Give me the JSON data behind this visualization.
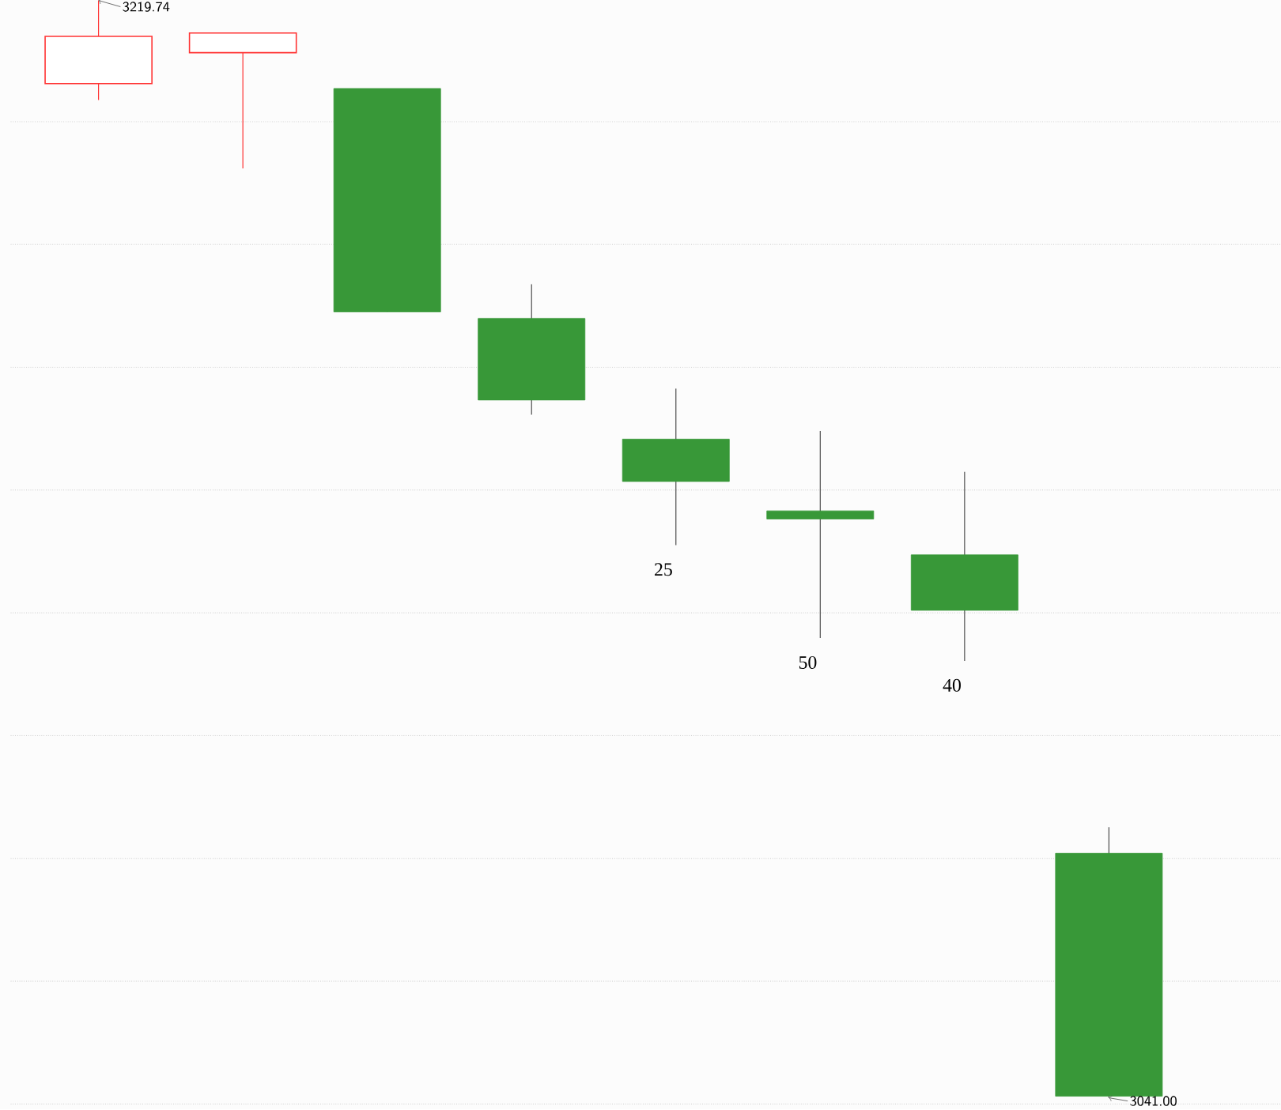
{
  "chart_data": {
    "type": "candlestick",
    "categories": [
      null,
      null,
      null,
      null,
      null,
      null,
      null,
      null
    ],
    "ohlc": [
      [
        3206.19,
        3219.74,
        3203.54,
        3213.9
      ],
      [
        3211.24,
        3214.43,
        3192.38,
        3214.43
      ],
      [
        3205.4,
        3205.4,
        3169.01,
        3169.01
      ],
      [
        3167.95,
        3173.53,
        3152.28,
        3154.67
      ],
      [
        3148.29,
        3156.53,
        3131.03,
        3141.39
      ],
      [
        3136.61,
        3149.62,
        3115.89,
        3135.28
      ],
      [
        3129.44,
        3142.98,
        3112.17,
        3120.41
      ],
      [
        3080.83,
        3085.08,
        3041.0,
        3041.27
      ]
    ],
    "yticks": [
      {
        "value": 3200,
        "label": null
      },
      {
        "value": 3180,
        "label": null
      },
      {
        "value": 3160,
        "label": null
      },
      {
        "value": 3140,
        "label": null
      },
      {
        "value": 3120,
        "label": null
      },
      {
        "value": 3100,
        "label": null
      },
      {
        "value": 3080,
        "label": null
      },
      {
        "value": 3060,
        "label": null
      },
      {
        "value": 3040,
        "label": null
      }
    ],
    "grid": "y",
    "annotations": [
      "3219.74",
      "25",
      "50",
      "40",
      "3041.00"
    ]
  }
}
